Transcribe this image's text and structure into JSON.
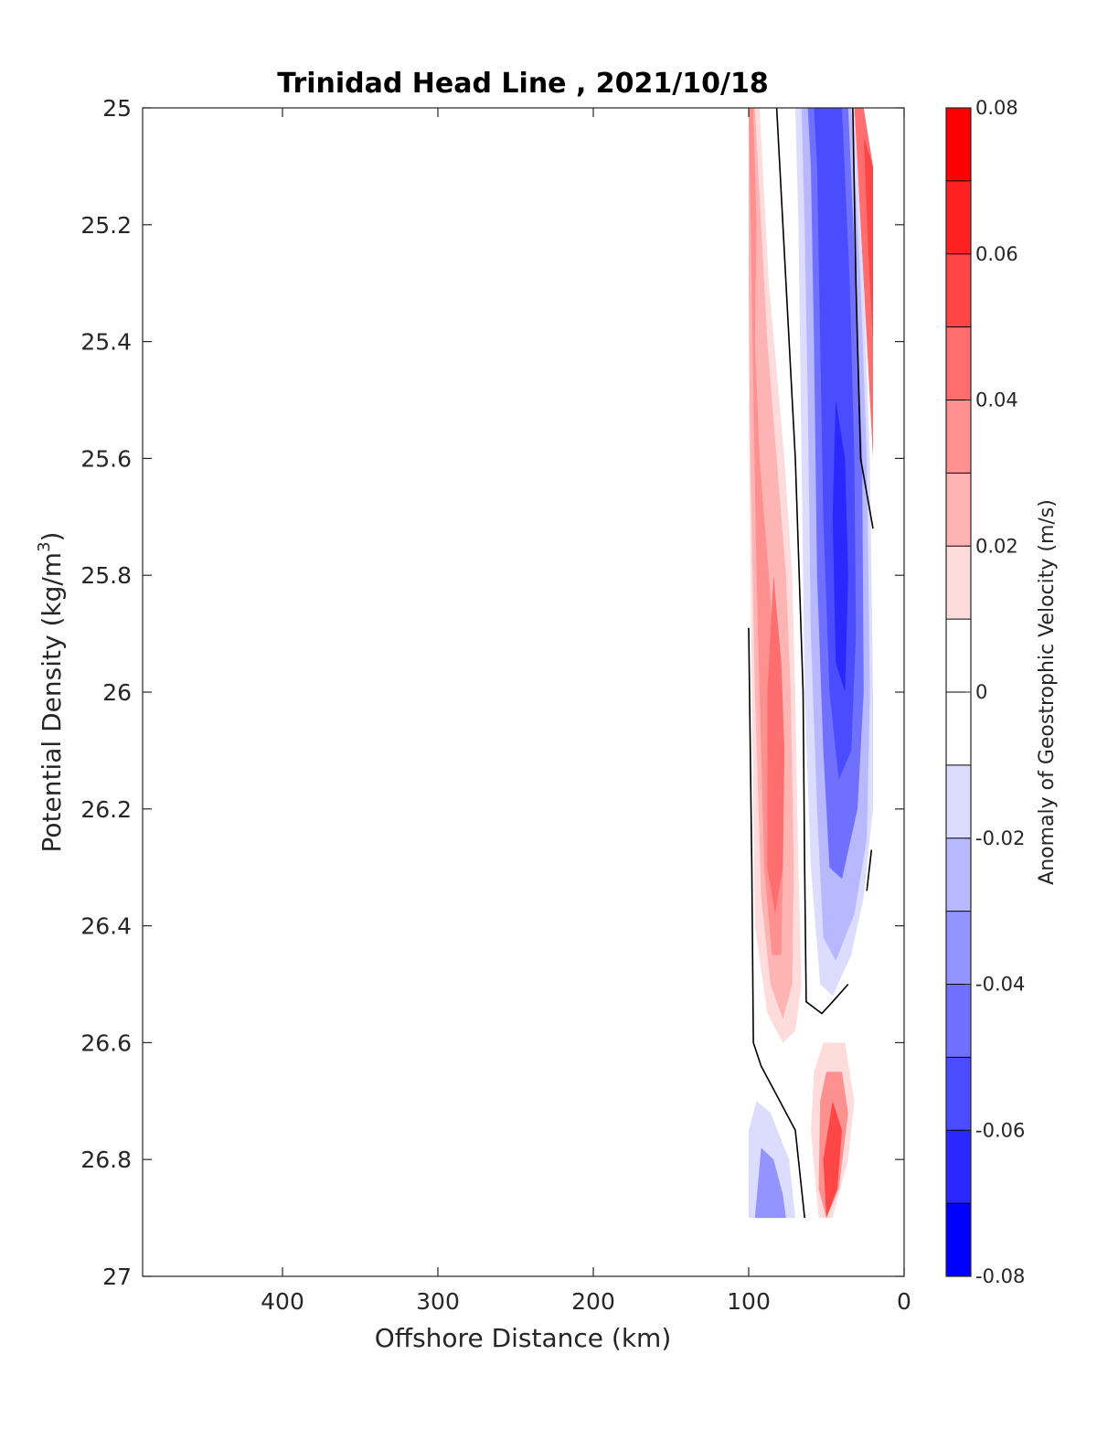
{
  "chart_data": {
    "type": "contour",
    "title": "Trinidad Head Line , 2021/10/18",
    "xlabel": "Offshore Distance (km)",
    "ylabel": "Potential Density (kg/m",
    "ylabel_sup": "3",
    "ylabel_close": ")",
    "xlim": [
      490,
      0
    ],
    "ylim": [
      25,
      27
    ],
    "x_reversed": true,
    "y_reversed": true,
    "xticks": [
      400,
      300,
      200,
      100,
      0
    ],
    "yticks": [
      "25",
      "25.2",
      "25.4",
      "25.6",
      "25.8",
      "26",
      "26.2",
      "26.4",
      "26.6",
      "26.8",
      "27"
    ],
    "colorbar": {
      "label": "Anomaly of Geostrophic Velocity (m/s)",
      "range": [
        -0.08,
        0.08
      ],
      "ticks": [
        "0.08",
        "0.06",
        "0.04",
        "0.02",
        "0",
        "-0.02",
        "-0.04",
        "-0.06",
        "-0.08"
      ],
      "levels_top_to_bottom": [
        "#ff0000",
        "#ff2020",
        "#ff4646",
        "#ff6e6e",
        "#ff9090",
        "#ffb4b4",
        "#ffdcdc",
        "#ffffff",
        "#ffffff",
        "#dcdcff",
        "#b8b8ff",
        "#9494ff",
        "#7070ff",
        "#4c4cff",
        "#2828ff",
        "#0000ff"
      ]
    },
    "regions": [
      {
        "name": "positive-anomaly-core-offshore",
        "value": 0.01,
        "color": "#ffdcdc",
        "polygon": [
          [
            100,
            25
          ],
          [
            93,
            25
          ],
          [
            87,
            25.3
          ],
          [
            77,
            25.6
          ],
          [
            72,
            25.8
          ],
          [
            70,
            26.0
          ],
          [
            68,
            26.3
          ],
          [
            66,
            26.5
          ],
          [
            70,
            26.58
          ],
          [
            78,
            26.6
          ],
          [
            88,
            26.55
          ],
          [
            96,
            26.4
          ],
          [
            98,
            26.0
          ],
          [
            100,
            25.5
          ]
        ]
      },
      {
        "name": "positive-anomaly-mid",
        "value": 0.02,
        "color": "#ffb4b4",
        "polygon": [
          [
            100,
            25
          ],
          [
            96,
            25
          ],
          [
            92,
            25.2
          ],
          [
            88,
            25.4
          ],
          [
            82,
            25.6
          ],
          [
            76,
            25.8
          ],
          [
            73,
            26.0
          ],
          [
            71,
            26.3
          ],
          [
            72,
            26.5
          ],
          [
            78,
            26.56
          ],
          [
            86,
            26.5
          ],
          [
            92,
            26.35
          ],
          [
            96,
            26.0
          ],
          [
            99,
            25.6
          ],
          [
            100,
            25.3
          ]
        ]
      },
      {
        "name": "positive-anomaly-inner",
        "value": 0.03,
        "color": "#ff9090",
        "polygon": [
          [
            100,
            25
          ],
          [
            97,
            25
          ],
          [
            95,
            25.2
          ],
          [
            96,
            25.4
          ],
          [
            93,
            25.6
          ],
          [
            87,
            25.8
          ],
          [
            82,
            26.0
          ],
          [
            78,
            26.3
          ],
          [
            79,
            26.45
          ],
          [
            85,
            26.45
          ],
          [
            90,
            26.3
          ],
          [
            93,
            26.0
          ],
          [
            95,
            25.8
          ]
        ]
      },
      {
        "name": "positive-anomaly-deep",
        "value": 0.04,
        "color": "#ff6e6e",
        "polygon": [
          [
            84,
            25.8
          ],
          [
            88,
            26.0
          ],
          [
            88,
            26.3
          ],
          [
            83,
            26.38
          ],
          [
            78,
            26.3
          ],
          [
            77,
            26.1
          ],
          [
            79,
            25.95
          ]
        ]
      },
      {
        "name": "positive-anomaly-nearshore-upper",
        "value": 0.03,
        "color": "#ff6e6e",
        "polygon": [
          [
            32,
            25
          ],
          [
            26,
            25
          ],
          [
            20,
            25.1
          ],
          [
            20,
            25.6
          ],
          [
            24,
            25.4
          ],
          [
            28,
            25.2
          ]
        ]
      },
      {
        "name": "positive-anomaly-nearshore-upper-core",
        "value": 0.05,
        "color": "#ff4646",
        "polygon": [
          [
            26,
            25.05
          ],
          [
            20,
            25.1
          ],
          [
            20,
            25.4
          ],
          [
            23,
            25.25
          ]
        ]
      },
      {
        "name": "negative-anomaly-core-outer",
        "value": -0.01,
        "color": "#dcdcff",
        "polygon": [
          [
            70,
            25
          ],
          [
            32,
            25
          ],
          [
            26,
            25.3
          ],
          [
            22,
            25.6
          ],
          [
            20,
            26.0
          ],
          [
            20,
            26.2
          ],
          [
            26,
            26.35
          ],
          [
            34,
            26.45
          ],
          [
            46,
            26.52
          ],
          [
            54,
            26.5
          ],
          [
            60,
            26.3
          ],
          [
            64,
            26.0
          ],
          [
            66,
            25.6
          ],
          [
            68,
            25.2
          ]
        ]
      },
      {
        "name": "negative-anomaly-core-mid",
        "value": -0.02,
        "color": "#b8b8ff",
        "polygon": [
          [
            66,
            25
          ],
          [
            34,
            25
          ],
          [
            28,
            25.3
          ],
          [
            24,
            25.6
          ],
          [
            22,
            26.0
          ],
          [
            24,
            26.25
          ],
          [
            32,
            26.38
          ],
          [
            44,
            26.46
          ],
          [
            52,
            26.42
          ],
          [
            56,
            26.2
          ],
          [
            60,
            25.9
          ],
          [
            62,
            25.5
          ],
          [
            64,
            25.2
          ]
        ]
      },
      {
        "name": "negative-anomaly-core-inner",
        "value": -0.04,
        "color": "#7070ff",
        "polygon": [
          [
            62,
            25
          ],
          [
            36,
            25
          ],
          [
            31,
            25.3
          ],
          [
            27,
            25.6
          ],
          [
            26,
            26.0
          ],
          [
            30,
            26.2
          ],
          [
            40,
            26.32
          ],
          [
            48,
            26.3
          ],
          [
            52,
            26.1
          ],
          [
            56,
            25.8
          ],
          [
            58,
            25.4
          ],
          [
            60,
            25.1
          ]
        ]
      },
      {
        "name": "negative-anomaly-core-deep",
        "value": -0.06,
        "color": "#4c4cff",
        "polygon": [
          [
            58,
            25
          ],
          [
            40,
            25
          ],
          [
            35,
            25.3
          ],
          [
            32,
            25.6
          ],
          [
            31,
            25.9
          ],
          [
            34,
            26.1
          ],
          [
            42,
            26.15
          ],
          [
            48,
            26.0
          ],
          [
            52,
            25.7
          ],
          [
            54,
            25.4
          ],
          [
            56,
            25.1
          ]
        ]
      },
      {
        "name": "negative-anomaly-core-max",
        "value": -0.07,
        "color": "#2828ff",
        "polygon": [
          [
            44,
            25.5
          ],
          [
            38,
            25.6
          ],
          [
            36,
            25.8
          ],
          [
            38,
            26.0
          ],
          [
            44,
            25.95
          ],
          [
            46,
            25.7
          ]
        ]
      },
      {
        "name": "positive-anomaly-lower",
        "value": 0.01,
        "color": "#ffdcdc",
        "polygon": [
          [
            52,
            26.6
          ],
          [
            38,
            26.6
          ],
          [
            32,
            26.7
          ],
          [
            36,
            26.8
          ],
          [
            46,
            26.9
          ],
          [
            55,
            26.9
          ],
          [
            60,
            26.75
          ],
          [
            58,
            26.65
          ]
        ]
      },
      {
        "name": "positive-anomaly-lower-mid",
        "value": 0.03,
        "color": "#ff9090",
        "polygon": [
          [
            50,
            26.65
          ],
          [
            40,
            26.65
          ],
          [
            36,
            26.72
          ],
          [
            42,
            26.85
          ],
          [
            50,
            26.9
          ],
          [
            55,
            26.85
          ],
          [
            54,
            26.7
          ]
        ]
      },
      {
        "name": "positive-anomaly-lower-core",
        "value": 0.05,
        "color": "#ff4646",
        "polygon": [
          [
            46,
            26.7
          ],
          [
            40,
            26.75
          ],
          [
            43,
            26.85
          ],
          [
            50,
            26.9
          ],
          [
            52,
            26.8
          ]
        ]
      },
      {
        "name": "negative-anomaly-lower",
        "value": -0.01,
        "color": "#dcdcff",
        "polygon": [
          [
            95,
            26.7
          ],
          [
            86,
            26.72
          ],
          [
            74,
            26.8
          ],
          [
            70,
            26.9
          ],
          [
            100,
            26.9
          ],
          [
            100,
            26.75
          ]
        ]
      },
      {
        "name": "negative-anomaly-lower-mid",
        "value": -0.03,
        "color": "#9494ff",
        "polygon": [
          [
            92,
            26.78
          ],
          [
            84,
            26.8
          ],
          [
            78,
            26.86
          ],
          [
            76,
            26.9
          ],
          [
            96,
            26.9
          ]
        ]
      }
    ],
    "zero_contours": [
      [
        [
          82,
          25
        ],
        [
          78,
          25.2
        ],
        [
          70,
          25.6
        ],
        [
          65,
          26.0
        ],
        [
          64,
          26.3
        ],
        [
          63,
          26.53
        ],
        [
          53,
          26.55
        ],
        [
          46,
          26.53
        ],
        [
          36,
          26.5
        ]
      ],
      [
        [
          33,
          25
        ],
        [
          31,
          25.3
        ],
        [
          28,
          25.6
        ],
        [
          20,
          25.72
        ]
      ],
      [
        [
          100,
          25.89
        ],
        [
          98,
          26.3
        ],
        [
          97,
          26.6
        ],
        [
          92,
          26.64
        ],
        [
          80,
          26.7
        ],
        [
          70,
          26.75
        ],
        [
          64,
          26.9
        ]
      ],
      [
        [
          21,
          26.27
        ],
        [
          24,
          26.34
        ]
      ]
    ]
  }
}
